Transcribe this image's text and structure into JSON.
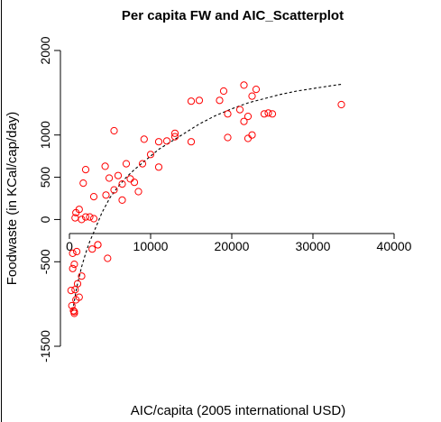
{
  "chart_data": {
    "type": "scatter",
    "title": "Per capita FW and AIC_Scatterplot",
    "xlabel": "AIC/capita (2005 international USD)",
    "ylabel": "Foodwaste (in KCal/cap/day)",
    "xlim": [
      0,
      40000
    ],
    "ylim": [
      -1500,
      2000
    ],
    "x_ticks": [
      0,
      10000,
      20000,
      30000,
      40000
    ],
    "y_ticks": [
      -1500,
      -500,
      0,
      500,
      1000,
      2000
    ],
    "grid": false,
    "legend": "none",
    "point_color": "#ff0000",
    "trend_color": "#000000",
    "points": [
      [
        300,
        -1020
      ],
      [
        500,
        -1080
      ],
      [
        600,
        -1110
      ],
      [
        600,
        -1090
      ],
      [
        200,
        -840
      ],
      [
        800,
        -950
      ],
      [
        700,
        -830
      ],
      [
        1000,
        -760
      ],
      [
        1200,
        -920
      ],
      [
        1500,
        -670
      ],
      [
        400,
        -580
      ],
      [
        600,
        -530
      ],
      [
        900,
        -380
      ],
      [
        400,
        -400
      ],
      [
        700,
        20
      ],
      [
        1200,
        120
      ],
      [
        800,
        80
      ],
      [
        1500,
        0
      ],
      [
        2000,
        30
      ],
      [
        2500,
        30
      ],
      [
        3000,
        10
      ],
      [
        3500,
        -300
      ],
      [
        1700,
        430
      ],
      [
        2000,
        590
      ],
      [
        3000,
        270
      ],
      [
        2800,
        -350
      ],
      [
        3500,
        -300
      ],
      [
        4500,
        290
      ],
      [
        4700,
        -460
      ],
      [
        4400,
        630
      ],
      [
        4900,
        490
      ],
      [
        5500,
        350
      ],
      [
        6000,
        520
      ],
      [
        6500,
        420
      ],
      [
        6500,
        230
      ],
      [
        5500,
        1050
      ],
      [
        7000,
        660
      ],
      [
        7500,
        480
      ],
      [
        8000,
        440
      ],
      [
        8500,
        330
      ],
      [
        9000,
        660
      ],
      [
        9200,
        950
      ],
      [
        10000,
        770
      ],
      [
        11000,
        920
      ],
      [
        11000,
        620
      ],
      [
        12000,
        930
      ],
      [
        13000,
        980
      ],
      [
        13000,
        1020
      ],
      [
        15000,
        1400
      ],
      [
        15000,
        920
      ],
      [
        16000,
        1410
      ],
      [
        18500,
        1410
      ],
      [
        19000,
        1520
      ],
      [
        19500,
        1250
      ],
      [
        19500,
        970
      ],
      [
        21000,
        1300
      ],
      [
        21500,
        1590
      ],
      [
        21500,
        1160
      ],
      [
        22000,
        1220
      ],
      [
        22000,
        960
      ],
      [
        22500,
        1460
      ],
      [
        22500,
        1000
      ],
      [
        23000,
        1540
      ],
      [
        24000,
        1250
      ],
      [
        24500,
        1260
      ],
      [
        25000,
        1250
      ],
      [
        33500,
        1360
      ]
    ],
    "trendline": [
      [
        400,
        -1080
      ],
      [
        900,
        -800
      ],
      [
        1500,
        -560
      ],
      [
        2000,
        -400
      ],
      [
        2500,
        -260
      ],
      [
        3000,
        -150
      ],
      [
        4000,
        80
      ],
      [
        5000,
        260
      ],
      [
        6000,
        390
      ],
      [
        7000,
        500
      ],
      [
        8000,
        590
      ],
      [
        9000,
        670
      ],
      [
        10000,
        750
      ],
      [
        11000,
        830
      ],
      [
        12000,
        890
      ],
      [
        14000,
        1010
      ],
      [
        16000,
        1130
      ],
      [
        18000,
        1230
      ],
      [
        20000,
        1310
      ],
      [
        22000,
        1380
      ],
      [
        24000,
        1430
      ],
      [
        26000,
        1480
      ],
      [
        28000,
        1520
      ],
      [
        30000,
        1550
      ],
      [
        32000,
        1580
      ],
      [
        33500,
        1600
      ]
    ]
  }
}
